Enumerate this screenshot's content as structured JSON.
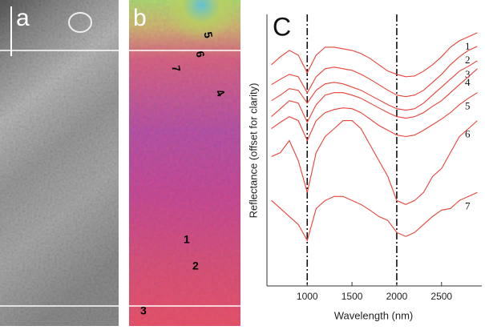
{
  "panels": [
    {
      "label": "a"
    },
    {
      "label": "b",
      "markers": [
        "5",
        "6",
        "7",
        "4",
        "1",
        "2",
        "3"
      ]
    }
  ],
  "chart_data": {
    "type": "line",
    "panel_label": "C",
    "xlabel": "Wavelength (nm)",
    "ylabel": "Reflectance (offset for clarity)",
    "x": [
      600,
      700,
      800,
      900,
      1000,
      1100,
      1200,
      1300,
      1400,
      1500,
      1600,
      1700,
      1800,
      1900,
      2000,
      2100,
      2200,
      2300,
      2400,
      2500,
      2600,
      2700,
      2800,
      2900
    ],
    "xlim": [
      550,
      2950
    ],
    "xticks": [
      1000,
      1500,
      2000,
      2500
    ],
    "ylim": [
      0,
      340
    ],
    "vlines": [
      1000,
      2000
    ],
    "series": [
      {
        "name": "1",
        "color": "#e8433a",
        "values": [
          277,
          287,
          295,
          289,
          267,
          289,
          299,
          299,
          297,
          295,
          291,
          285,
          277,
          269,
          265,
          262,
          263,
          269,
          277,
          287,
          299,
          307,
          312,
          317
        ]
      },
      {
        "name": "2",
        "color": "#e8433a",
        "values": [
          252,
          259,
          265,
          262,
          242,
          262,
          272,
          274,
          272,
          270,
          265,
          259,
          252,
          245,
          239,
          237,
          239,
          245,
          255,
          265,
          277,
          287,
          295,
          300
        ]
      },
      {
        "name": "3",
        "color": "#e8433a",
        "values": [
          232,
          239,
          247,
          245,
          229,
          245,
          253,
          255,
          253,
          249,
          245,
          239,
          233,
          227,
          222,
          220,
          222,
          229,
          239,
          249,
          259,
          269,
          275,
          282
        ]
      },
      {
        "name": "4",
        "color": "#e8433a",
        "values": [
          212,
          222,
          232,
          229,
          205,
          227,
          239,
          242,
          242,
          239,
          235,
          229,
          223,
          217,
          212,
          210,
          212,
          217,
          225,
          232,
          242,
          252,
          262,
          272
        ]
      },
      {
        "name": "5",
        "color": "#e8433a",
        "values": [
          197,
          205,
          212,
          207,
          182,
          207,
          217,
          221,
          223,
          222,
          217,
          209,
          201,
          195,
          189,
          187,
          189,
          195,
          202,
          209,
          217,
          227,
          235,
          242
        ]
      },
      {
        "name": "6",
        "color": "#e8433a",
        "values": [
          162,
          167,
          182,
          157,
          117,
          167,
          187,
          197,
          207,
          207,
          197,
          177,
          157,
          137,
          107,
          102,
          107,
          117,
          137,
          147,
          167,
          187,
          197,
          207
        ]
      },
      {
        "name": "7",
        "color": "#e8433a",
        "values": [
          107,
          97,
          87,
          77,
          57,
          97,
          107,
          112,
          112,
          107,
          102,
          95,
          87,
          82,
          67,
          62,
          67,
          77,
          87,
          95,
          97,
          107,
          112,
          117
        ]
      }
    ]
  }
}
